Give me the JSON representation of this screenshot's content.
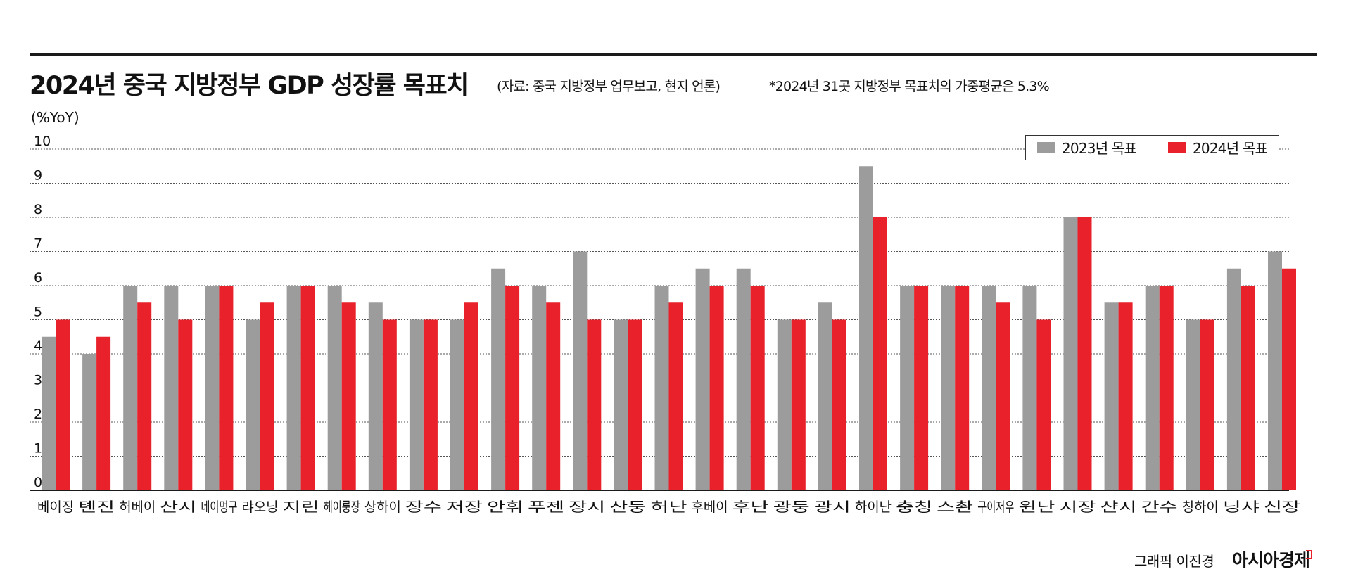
{
  "header": {
    "title": "2024년 중국 지방정부 GDP 성장률 목표치",
    "source": "(자료: 중국 지방정부 업무보고, 현지 언론)",
    "note": "*2024년 31곳 지방정부 목표치의 가중평균은 5.3%"
  },
  "footer": {
    "credit": "그래픽 이진경",
    "brand": "아시아경제"
  },
  "colors": {
    "series_2023": "#9d9c9d",
    "series_2024": "#e8212a",
    "gridline": "#555555",
    "axis": "#1a1a1a"
  },
  "chart_data": {
    "type": "bar",
    "unit_label": "(%YoY)",
    "ylim": [
      0,
      10
    ],
    "yticks": [
      0,
      1,
      2,
      3,
      4,
      5,
      6,
      7,
      8,
      9,
      10
    ],
    "grid": true,
    "legend_position": "top-right",
    "categories": [
      "베이징",
      "톈진",
      "허베이",
      "산시",
      "네이멍구",
      "랴오닝",
      "지린",
      "헤이룽장",
      "상하이",
      "장수",
      "저장",
      "안휘",
      "푸젠",
      "장시",
      "산둥",
      "허난",
      "후베이",
      "후난",
      "광둥",
      "광시",
      "하이난",
      "충칭",
      "스촨",
      "구이저우",
      "윈난",
      "시장",
      "샨시",
      "간수",
      "칭하이",
      "닝샤",
      "신장"
    ],
    "series": [
      {
        "name": "2023년 목표",
        "values": [
          4.5,
          4,
          6,
          6,
          6,
          5,
          6,
          6,
          5.5,
          5,
          5,
          6.5,
          6,
          7,
          5,
          6,
          6.5,
          6.5,
          5,
          5.5,
          9.5,
          6,
          6,
          6,
          6,
          8,
          5.5,
          6,
          5,
          6.5,
          7
        ]
      },
      {
        "name": "2024년 목표",
        "values": [
          5,
          4.5,
          5.5,
          5,
          6,
          5.5,
          6,
          5.5,
          5,
          5,
          5.5,
          6,
          5.5,
          5,
          5,
          5.5,
          6,
          6,
          5,
          5,
          8,
          6,
          6,
          5.5,
          5,
          8,
          5.5,
          6,
          5,
          6,
          6.5
        ]
      }
    ]
  }
}
